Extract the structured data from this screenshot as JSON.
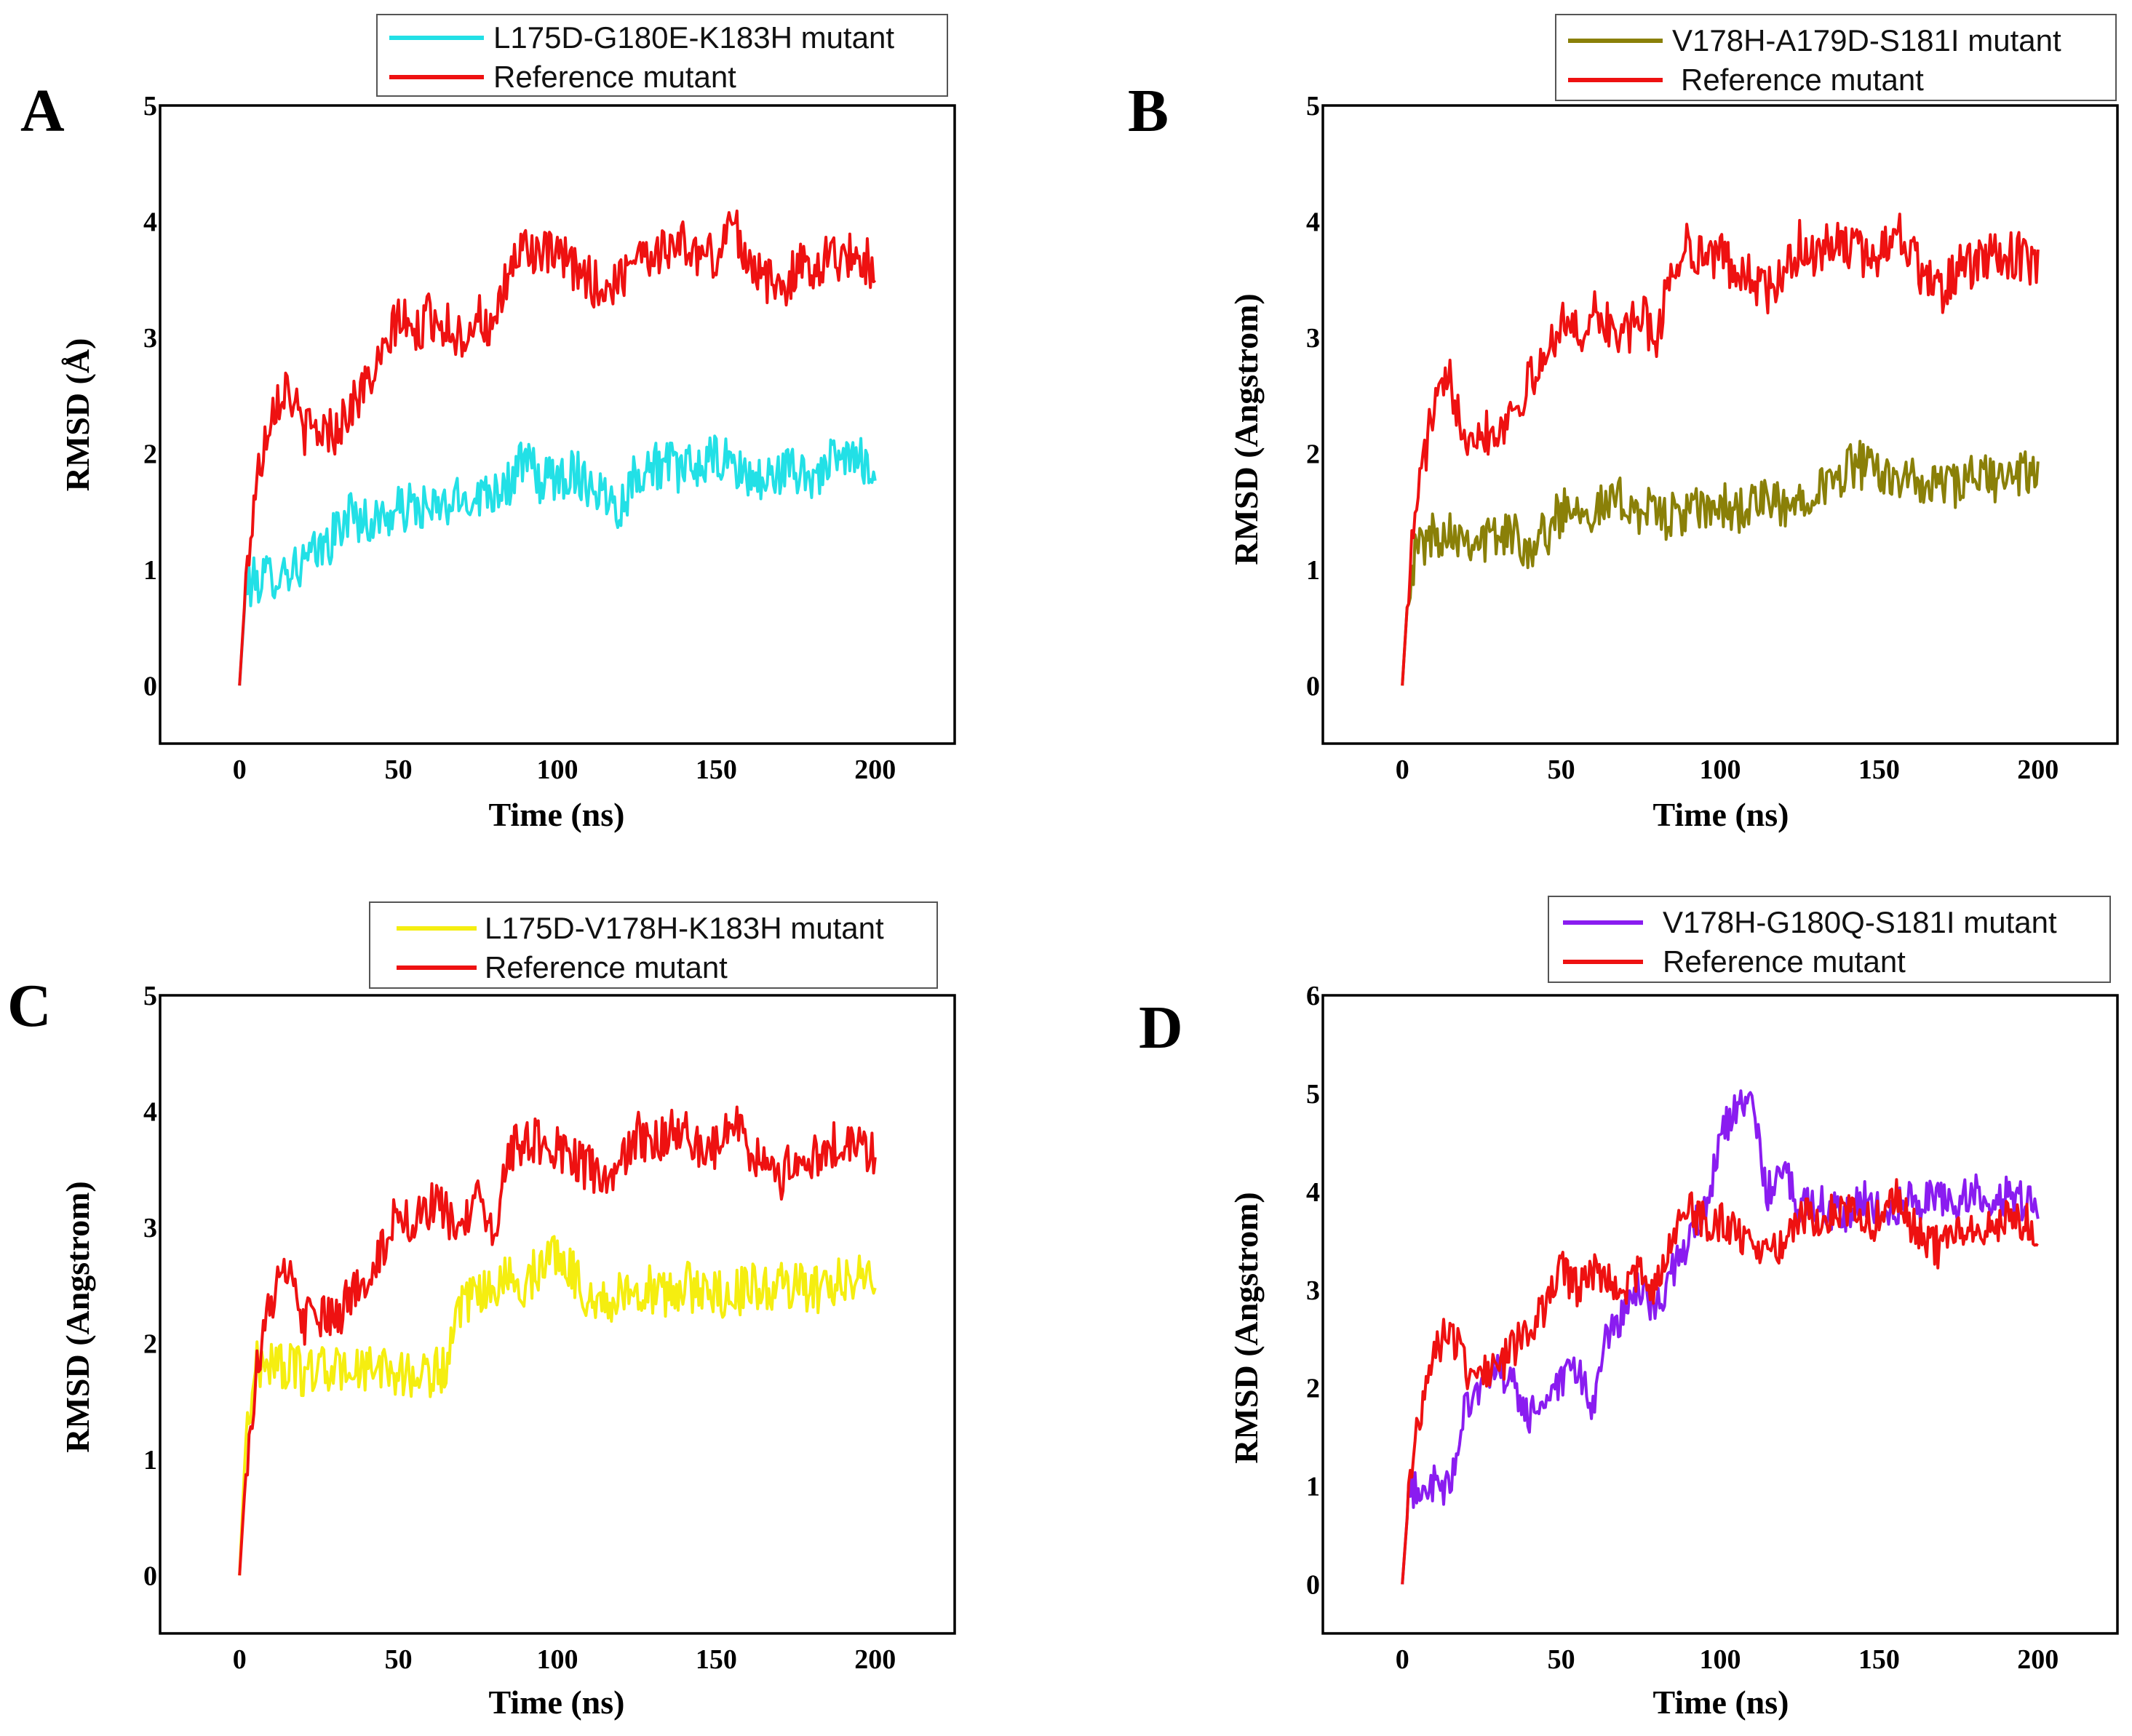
{
  "chart_data": [
    {
      "panel": "A",
      "type": "line",
      "xlabel": "Time (ns)",
      "ylabel": "RMSD (Å)",
      "xlim": [
        -25,
        225
      ],
      "ylim": [
        -0.5,
        5
      ],
      "xticks": [
        0,
        50,
        100,
        150,
        200
      ],
      "yticks": [
        0,
        1,
        2,
        3,
        4,
        5
      ],
      "legend_position": "top",
      "series": [
        {
          "name": "L175D-G180E-K183H mutant",
          "color": "#22e0e6",
          "x": [
            0,
            2,
            5,
            10,
            15,
            20,
            25,
            30,
            35,
            40,
            45,
            50,
            55,
            60,
            65,
            70,
            75,
            80,
            85,
            90,
            95,
            100,
            105,
            110,
            115,
            120,
            125,
            130,
            135,
            140,
            145,
            150,
            155,
            160,
            165,
            170,
            175,
            180,
            185,
            190,
            195,
            200
          ],
          "values": [
            0.0,
            0.85,
            0.9,
            0.95,
            1.0,
            1.05,
            1.15,
            1.3,
            1.5,
            1.4,
            1.45,
            1.5,
            1.55,
            1.5,
            1.55,
            1.6,
            1.65,
            1.7,
            1.75,
            1.95,
            1.75,
            1.8,
            1.85,
            1.75,
            1.65,
            1.55,
            1.85,
            1.9,
            1.9,
            1.85,
            1.9,
            1.95,
            1.9,
            1.8,
            1.75,
            1.85,
            1.85,
            1.8,
            1.9,
            1.95,
            1.95,
            1.9
          ]
        },
        {
          "name": "Reference mutant",
          "color": "#ee1111",
          "x": [
            0,
            2,
            5,
            10,
            15,
            20,
            25,
            30,
            35,
            40,
            45,
            50,
            55,
            60,
            65,
            70,
            75,
            80,
            85,
            90,
            95,
            100,
            105,
            110,
            115,
            120,
            125,
            130,
            135,
            140,
            145,
            150,
            155,
            160,
            165,
            170,
            175,
            180,
            185,
            190,
            195,
            200
          ],
          "values": [
            0.0,
            0.9,
            1.7,
            2.4,
            2.6,
            2.2,
            2.2,
            2.2,
            2.4,
            2.6,
            2.8,
            3.2,
            3.0,
            3.2,
            3.1,
            3.0,
            3.2,
            3.0,
            3.6,
            3.8,
            3.7,
            3.7,
            3.6,
            3.5,
            3.4,
            3.5,
            3.8,
            3.7,
            3.8,
            3.8,
            3.7,
            3.7,
            4.0,
            3.7,
            3.5,
            3.4,
            3.6,
            3.6,
            3.7,
            3.7,
            3.7,
            3.6
          ]
        }
      ]
    },
    {
      "panel": "B",
      "type": "line",
      "xlabel": "Time (ns)",
      "ylabel": "RMSD (Angstrom)",
      "xlim": [
        -25,
        225
      ],
      "ylim": [
        -0.5,
        5
      ],
      "xticks": [
        0,
        50,
        100,
        150,
        200
      ],
      "yticks": [
        0,
        1,
        2,
        3,
        4,
        5
      ],
      "legend_position": "top",
      "series": [
        {
          "name": "V178H-A179D-S181I mutant",
          "color": "#8a8008",
          "x": [
            0,
            2,
            5,
            10,
            15,
            20,
            25,
            30,
            35,
            40,
            45,
            50,
            55,
            60,
            65,
            70,
            75,
            80,
            85,
            90,
            95,
            100,
            105,
            110,
            115,
            120,
            125,
            130,
            135,
            140,
            145,
            150,
            155,
            160,
            165,
            170,
            175,
            180,
            185,
            190,
            195,
            200
          ],
          "values": [
            0.0,
            0.9,
            1.2,
            1.3,
            1.35,
            1.3,
            1.25,
            1.3,
            1.3,
            1.2,
            1.3,
            1.5,
            1.6,
            1.5,
            1.55,
            1.6,
            1.5,
            1.5,
            1.45,
            1.5,
            1.5,
            1.55,
            1.5,
            1.55,
            1.6,
            1.5,
            1.6,
            1.75,
            1.7,
            1.9,
            1.9,
            1.8,
            1.85,
            1.75,
            1.7,
            1.75,
            1.7,
            1.8,
            1.8,
            1.75,
            1.85,
            1.8
          ]
        },
        {
          "name": "Reference mutant",
          "color": "#ee1111",
          "x": [
            0,
            2,
            5,
            10,
            15,
            20,
            25,
            30,
            35,
            40,
            45,
            50,
            55,
            60,
            65,
            70,
            75,
            80,
            85,
            90,
            95,
            100,
            105,
            110,
            115,
            120,
            125,
            130,
            135,
            140,
            145,
            150,
            155,
            160,
            165,
            170,
            175,
            180,
            185,
            190,
            195,
            200
          ],
          "values": [
            0.0,
            0.9,
            1.7,
            2.4,
            2.6,
            2.2,
            2.2,
            2.2,
            2.4,
            2.6,
            2.8,
            3.2,
            3.0,
            3.2,
            3.1,
            3.0,
            3.2,
            3.0,
            3.6,
            3.8,
            3.7,
            3.7,
            3.6,
            3.5,
            3.4,
            3.5,
            3.8,
            3.7,
            3.8,
            3.8,
            3.7,
            3.7,
            4.0,
            3.7,
            3.5,
            3.4,
            3.6,
            3.6,
            3.7,
            3.7,
            3.7,
            3.6
          ]
        }
      ]
    },
    {
      "panel": "C",
      "type": "line",
      "xlabel": "Time (ns)",
      "ylabel": "RMSD (Angstrom)",
      "xlim": [
        -25,
        225
      ],
      "ylim": [
        -0.5,
        5
      ],
      "xticks": [
        0,
        50,
        100,
        150,
        200
      ],
      "yticks": [
        0,
        1,
        2,
        3,
        4,
        5
      ],
      "legend_position": "top",
      "series": [
        {
          "name": "L175D-V178H-K183H mutant",
          "color": "#f5ee10",
          "x": [
            0,
            2,
            5,
            10,
            15,
            20,
            25,
            30,
            35,
            40,
            45,
            50,
            55,
            60,
            65,
            70,
            75,
            80,
            85,
            90,
            95,
            100,
            105,
            110,
            115,
            120,
            125,
            130,
            135,
            140,
            145,
            150,
            155,
            160,
            165,
            170,
            175,
            180,
            185,
            190,
            195,
            200
          ],
          "values": [
            0.0,
            1.2,
            1.8,
            1.85,
            1.8,
            1.75,
            1.8,
            1.75,
            1.8,
            1.75,
            1.8,
            1.75,
            1.7,
            1.75,
            1.8,
            2.3,
            2.4,
            2.5,
            2.55,
            2.5,
            2.7,
            2.8,
            2.6,
            2.4,
            2.35,
            2.4,
            2.5,
            2.45,
            2.4,
            2.5,
            2.45,
            2.45,
            2.4,
            2.5,
            2.45,
            2.5,
            2.5,
            2.45,
            2.5,
            2.55,
            2.6,
            2.5
          ]
        },
        {
          "name": "Reference mutant",
          "color": "#ee1111",
          "x": [
            0,
            2,
            5,
            10,
            15,
            20,
            25,
            30,
            35,
            40,
            45,
            50,
            55,
            60,
            65,
            70,
            75,
            80,
            85,
            90,
            95,
            100,
            105,
            110,
            115,
            120,
            125,
            130,
            135,
            140,
            145,
            150,
            155,
            160,
            165,
            170,
            175,
            180,
            185,
            190,
            195,
            200
          ],
          "values": [
            0.0,
            0.9,
            1.7,
            2.4,
            2.6,
            2.2,
            2.2,
            2.2,
            2.4,
            2.6,
            2.8,
            3.2,
            3.0,
            3.2,
            3.1,
            3.0,
            3.2,
            3.0,
            3.6,
            3.8,
            3.7,
            3.7,
            3.6,
            3.5,
            3.4,
            3.5,
            3.8,
            3.7,
            3.8,
            3.8,
            3.7,
            3.7,
            4.0,
            3.7,
            3.5,
            3.4,
            3.6,
            3.6,
            3.7,
            3.7,
            3.7,
            3.6
          ]
        }
      ]
    },
    {
      "panel": "D",
      "type": "line",
      "xlabel": "Time (ns)",
      "ylabel": "RMSD (Angstrom)",
      "xlim": [
        -25,
        225
      ],
      "ylim": [
        -0.5,
        6
      ],
      "xticks": [
        0,
        50,
        100,
        150,
        200
      ],
      "yticks": [
        0,
        1,
        2,
        3,
        4,
        5,
        6
      ],
      "legend_position": "top",
      "series": [
        {
          "name": "V178H-G180Q-S181I mutant",
          "color": "#8a1cf0",
          "x": [
            0,
            2,
            5,
            10,
            15,
            20,
            25,
            30,
            35,
            40,
            45,
            50,
            55,
            60,
            65,
            70,
            75,
            80,
            85,
            90,
            95,
            100,
            105,
            110,
            115,
            120,
            125,
            130,
            135,
            140,
            145,
            150,
            155,
            160,
            165,
            170,
            175,
            180,
            185,
            190,
            195,
            200
          ],
          "values": [
            0.0,
            0.9,
            1.0,
            1.0,
            0.95,
            1.9,
            2.0,
            2.2,
            2.0,
            1.7,
            1.9,
            2.0,
            2.2,
            1.8,
            2.6,
            2.8,
            3.0,
            2.8,
            3.2,
            3.5,
            3.8,
            4.5,
            4.9,
            4.8,
            4.0,
            4.2,
            3.8,
            3.9,
            3.8,
            3.8,
            3.9,
            3.85,
            3.85,
            3.9,
            3.9,
            3.95,
            3.9,
            4.0,
            3.9,
            3.95,
            3.9,
            3.9
          ]
        },
        {
          "name": "Reference mutant",
          "color": "#ee1111",
          "x": [
            0,
            2,
            5,
            10,
            15,
            20,
            25,
            30,
            35,
            40,
            45,
            50,
            55,
            60,
            65,
            70,
            75,
            80,
            85,
            90,
            95,
            100,
            105,
            110,
            115,
            120,
            125,
            130,
            135,
            140,
            145,
            150,
            155,
            160,
            165,
            170,
            175,
            180,
            185,
            190,
            195,
            200
          ],
          "values": [
            0.0,
            0.9,
            1.7,
            2.4,
            2.6,
            2.2,
            2.2,
            2.2,
            2.4,
            2.6,
            2.8,
            3.2,
            3.0,
            3.2,
            3.1,
            3.0,
            3.2,
            3.0,
            3.6,
            3.8,
            3.7,
            3.7,
            3.6,
            3.5,
            3.4,
            3.5,
            3.8,
            3.7,
            3.8,
            3.8,
            3.7,
            3.7,
            4.0,
            3.7,
            3.5,
            3.4,
            3.6,
            3.6,
            3.7,
            3.7,
            3.7,
            3.6
          ]
        }
      ]
    }
  ]
}
